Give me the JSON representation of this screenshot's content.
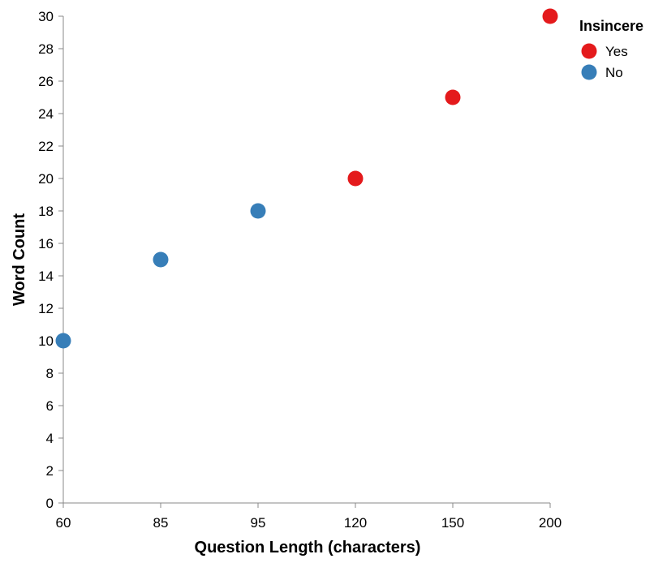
{
  "chart_data": {
    "type": "scatter",
    "xlabel": "Question Length (characters)",
    "ylabel": "Word Count",
    "x_axis_kind": "ordinal",
    "x_categories": [
      "60",
      "85",
      "95",
      "120",
      "150",
      "200"
    ],
    "y_ticks": [
      0,
      2,
      4,
      6,
      8,
      10,
      12,
      14,
      16,
      18,
      20,
      22,
      24,
      26,
      28,
      30
    ],
    "ylim": [
      0,
      30
    ],
    "grid": false,
    "legend": {
      "title": "Insincere",
      "placement": "top-right",
      "entries": [
        {
          "label": "Yes",
          "color": "#e41a1c"
        },
        {
          "label": "No",
          "color": "#377eb8"
        }
      ]
    },
    "series": [
      {
        "name": "Yes",
        "color": "#e41a1c",
        "points": [
          {
            "x": "120",
            "y": 20
          },
          {
            "x": "150",
            "y": 25
          },
          {
            "x": "200",
            "y": 30
          }
        ]
      },
      {
        "name": "No",
        "color": "#377eb8",
        "points": [
          {
            "x": "60",
            "y": 10
          },
          {
            "x": "85",
            "y": 15
          },
          {
            "x": "95",
            "y": 18
          }
        ]
      }
    ]
  }
}
